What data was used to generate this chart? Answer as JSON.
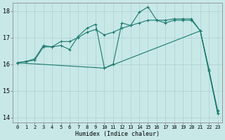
{
  "xlabel": "Humidex (Indice chaleur)",
  "xlim": [
    -0.5,
    23.5
  ],
  "ylim": [
    13.8,
    18.3
  ],
  "yticks": [
    14,
    15,
    16,
    17,
    18
  ],
  "xticks": [
    0,
    1,
    2,
    3,
    4,
    5,
    6,
    7,
    8,
    9,
    10,
    11,
    12,
    13,
    14,
    15,
    16,
    17,
    18,
    19,
    20,
    21,
    22,
    23
  ],
  "bg_color": "#c8e8e8",
  "grid_color": "#aed0d0",
  "line_color": "#1a7a6e",
  "line1_y": [
    16.05,
    16.1,
    16.15,
    16.65,
    16.65,
    16.7,
    16.55,
    17.05,
    17.35,
    17.5,
    15.85,
    16.0,
    17.55,
    17.45,
    17.95,
    18.15,
    17.65,
    17.55,
    17.65,
    17.65,
    17.65,
    17.25,
    15.8,
    14.15
  ],
  "line2_y": [
    16.05,
    16.1,
    16.2,
    16.7,
    16.65,
    16.85,
    16.85,
    17.0,
    17.2,
    17.3,
    17.1,
    17.2,
    17.35,
    17.45,
    17.55,
    17.65,
    17.65,
    17.65,
    17.7,
    17.7,
    17.7,
    17.25,
    15.75,
    14.25
  ],
  "line3_x": [
    0,
    10,
    21,
    23
  ],
  "line3_y": [
    16.05,
    15.85,
    17.25,
    14.15
  ]
}
